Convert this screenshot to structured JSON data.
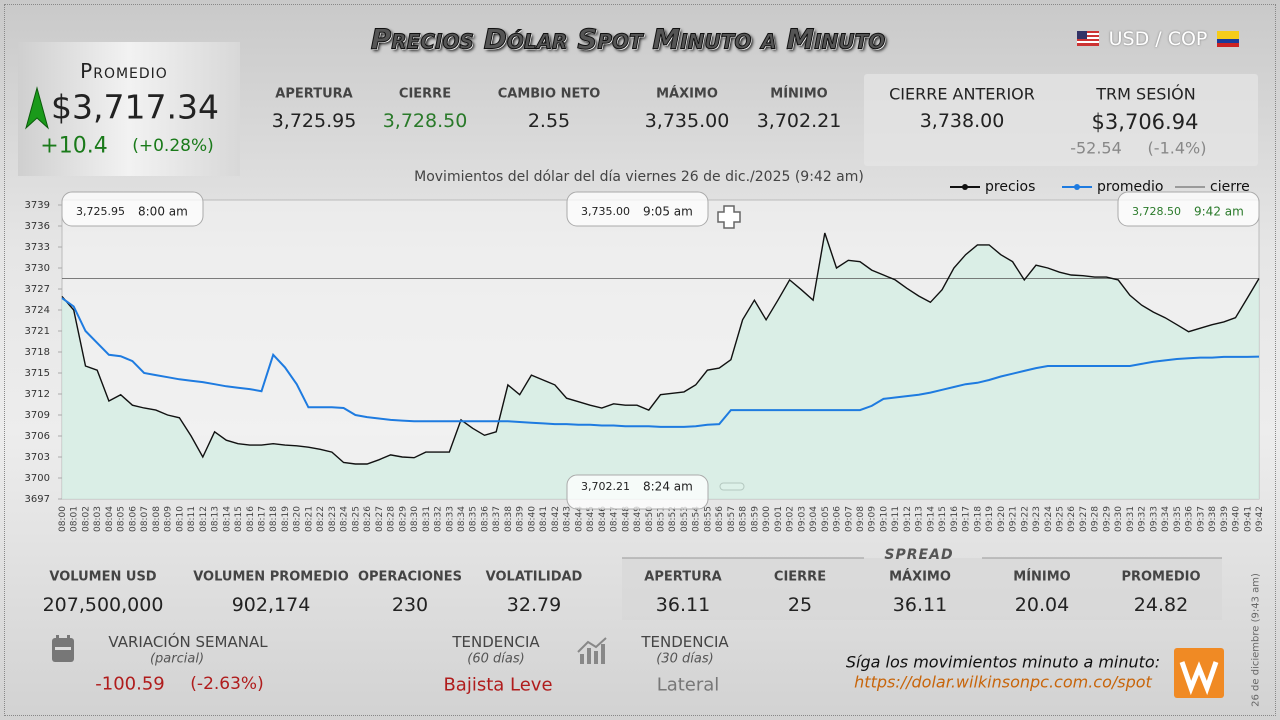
{
  "header": {
    "title": "Precios Dólar Spot Minuto a Minuto",
    "pair": "USD / COP"
  },
  "promedio": {
    "label": "Promedio",
    "value": "$3,717.34",
    "change": "+10.4",
    "change_pct": "(+0.28%)"
  },
  "stats": [
    {
      "label": "APERTURA",
      "value": "3,725.95"
    },
    {
      "label": "CIERRE",
      "value": "3,728.50"
    },
    {
      "label": "CAMBIO NETO",
      "value": "2.55"
    },
    {
      "label": "MÁXIMO",
      "value": "3,735.00"
    },
    {
      "label": "MÍNIMO",
      "value": "3,702.21"
    }
  ],
  "previous": {
    "label": "CIERRE ANTERIOR",
    "value": "3,738.00"
  },
  "trm": {
    "label": "TRM SESIÓN",
    "value": "$3,706.94",
    "change": "-52.54",
    "change_pct": "(-1.4%)"
  },
  "chart_data": {
    "type": "line",
    "subtitle": "Movimientos del dólar del día viernes 26 de dic./2025 (9:42 am)",
    "categories": [
      "08:00",
      "08:01",
      "08:02",
      "08:03",
      "08:04",
      "08:05",
      "08:06",
      "08:07",
      "08:08",
      "08:09",
      "08:10",
      "08:11",
      "08:12",
      "08:13",
      "08:14",
      "08:15",
      "08:16",
      "08:17",
      "08:18",
      "08:19",
      "08:20",
      "08:21",
      "08:22",
      "08:23",
      "08:24",
      "08:25",
      "08:26",
      "08:27",
      "08:28",
      "08:29",
      "08:30",
      "08:31",
      "08:32",
      "08:33",
      "08:34",
      "08:35",
      "08:36",
      "08:37",
      "08:38",
      "08:39",
      "08:40",
      "08:41",
      "08:42",
      "08:43",
      "08:44",
      "08:45",
      "08:46",
      "08:47",
      "08:48",
      "08:49",
      "08:50",
      "08:51",
      "08:52",
      "08:53",
      "08:54",
      "08:55",
      "08:56",
      "08:57",
      "08:58",
      "08:59",
      "09:00",
      "09:01",
      "09:02",
      "09:03",
      "09:04",
      "09:05",
      "09:06",
      "09:07",
      "09:08",
      "09:09",
      "09:10",
      "09:11",
      "09:12",
      "09:13",
      "09:14",
      "09:15",
      "09:16",
      "09:17",
      "09:18",
      "09:19",
      "09:20",
      "09:21",
      "09:22",
      "09:23",
      "09:24",
      "09:25",
      "09:26",
      "09:27",
      "09:28",
      "09:29",
      "09:30",
      "09:31",
      "09:32",
      "09:33",
      "09:34",
      "09:35",
      "09:36",
      "09:37",
      "09:38",
      "09:39",
      "09:40",
      "09:41",
      "09:42"
    ],
    "series": [
      {
        "name": "precios",
        "color": "#111111",
        "values": [
          3725.95,
          3724,
          3716,
          3715.4,
          3711,
          3711.9,
          3710.4,
          3710,
          3709.7,
          3709,
          3708.6,
          3706,
          3703,
          3706.6,
          3705.4,
          3704.9,
          3704.7,
          3704.7,
          3704.9,
          3704.7,
          3704.6,
          3704.4,
          3704.1,
          3703.7,
          3702.21,
          3702,
          3702,
          3702.6,
          3703.3,
          3703,
          3702.9,
          3703.7,
          3703.7,
          3703.7,
          3708.3,
          3707.1,
          3706.1,
          3706.6,
          3713.3,
          3711.9,
          3714.7,
          3714,
          3713.3,
          3711.4,
          3710.9,
          3710.4,
          3710,
          3710.6,
          3710.4,
          3710.4,
          3709.7,
          3711.9,
          3712.1,
          3712.3,
          3713.3,
          3715.4,
          3715.7,
          3716.9,
          3722.6,
          3725.4,
          3722.6,
          3725.4,
          3728.3,
          3726.9,
          3725.4,
          3735,
          3730,
          3731.1,
          3730.9,
          3729.7,
          3729,
          3728.3,
          3727.1,
          3726,
          3725.1,
          3726.9,
          3730,
          3731.9,
          3733.3,
          3733.3,
          3731.9,
          3730.9,
          3728.3,
          3730.4,
          3730,
          3729.4,
          3729,
          3728.9,
          3728.7,
          3728.7,
          3728.3,
          3726.1,
          3724.7,
          3723.7,
          3722.9,
          3721.9,
          3720.9,
          3721.4,
          3721.9,
          3722.3,
          3722.9,
          3725.7,
          3728.5
        ]
      },
      {
        "name": "promedio",
        "color": "#1e7be0",
        "values": [
          3725.7,
          3724.5,
          3721,
          3719.3,
          3717.6,
          3717.4,
          3716.7,
          3715,
          3714.7,
          3714.4,
          3714.1,
          3713.9,
          3713.7,
          3713.4,
          3713.1,
          3712.9,
          3712.7,
          3712.4,
          3717.6,
          3715.8,
          3713.4,
          3710.1,
          3710.1,
          3710.1,
          3710,
          3709,
          3708.7,
          3708.5,
          3708.3,
          3708.2,
          3708.1,
          3708.1,
          3708.1,
          3708.1,
          3708.1,
          3708.1,
          3708.1,
          3708.1,
          3708.1,
          3708,
          3707.9,
          3707.8,
          3707.7,
          3707.7,
          3707.6,
          3707.6,
          3707.5,
          3707.5,
          3707.4,
          3707.4,
          3707.4,
          3707.3,
          3707.3,
          3707.3,
          3707.4,
          3707.6,
          3707.7,
          3709.7,
          3709.7,
          3709.7,
          3709.7,
          3709.7,
          3709.7,
          3709.7,
          3709.7,
          3709.7,
          3709.7,
          3709.7,
          3709.7,
          3710.3,
          3711.3,
          3711.5,
          3711.7,
          3711.9,
          3712.2,
          3712.6,
          3713,
          3713.4,
          3713.6,
          3714,
          3714.5,
          3714.9,
          3715.3,
          3715.7,
          3716,
          3716,
          3716,
          3716,
          3716,
          3716,
          3716,
          3716,
          3716.3,
          3716.6,
          3716.8,
          3717,
          3717.1,
          3717.2,
          3717.2,
          3717.3,
          3717.3,
          3717.3,
          3717.34
        ]
      }
    ],
    "reference": {
      "name": "cierre",
      "color": "#555555",
      "value": 3728.5
    },
    "annotations": [
      {
        "value": "3,725.95",
        "time": "8:00 am",
        "color": "#222222"
      },
      {
        "value": "3,735.00",
        "time": "9:05 am",
        "color": "#222222"
      },
      {
        "value": "3,728.50",
        "time": "9:42 am",
        "color": "#2a7a2a"
      },
      {
        "value": "3,702.21",
        "time": "8:24 am",
        "color": "#222222"
      }
    ],
    "ylim": [
      3697,
      3739
    ],
    "yticks": [
      3697,
      3700,
      3703,
      3706,
      3709,
      3712,
      3715,
      3718,
      3721,
      3724,
      3727,
      3730,
      3733,
      3736,
      3739
    ],
    "grid": false,
    "fill_color": "#d4eee4"
  },
  "volume": [
    {
      "label": "VOLUMEN USD",
      "value": "207,500,000"
    },
    {
      "label": "VOLUMEN PROMEDIO",
      "value": "902,174"
    },
    {
      "label": "OPERACIONES",
      "value": "230"
    },
    {
      "label": "VOLATILIDAD",
      "value": "32.79"
    }
  ],
  "spread": {
    "title": "SPREAD",
    "items": [
      {
        "label": "APERTURA",
        "value": "36.11"
      },
      {
        "label": "CIERRE",
        "value": "25"
      },
      {
        "label": "MÁXIMO",
        "value": "36.11"
      },
      {
        "label": "MÍNIMO",
        "value": "20.04"
      },
      {
        "label": "PROMEDIO",
        "value": "24.82"
      }
    ]
  },
  "weekly": {
    "label": "VARIACIÓN SEMANAL",
    "note": "(parcial)",
    "change": "-100.59",
    "change_pct": "(-2.63%)"
  },
  "trends": [
    {
      "label": "TENDENCIA",
      "note": "(60 días)",
      "value": "Bajista Leve"
    },
    {
      "label": "TENDENCIA",
      "note": "(30 días)",
      "value": "Lateral"
    }
  ],
  "footer": {
    "cta": "Síga los movimientos minuto a minuto:",
    "url": "https://dolar.wilkinsonpc.com.co/spot",
    "stamp": "26 de diciembre (9:43 am)"
  }
}
